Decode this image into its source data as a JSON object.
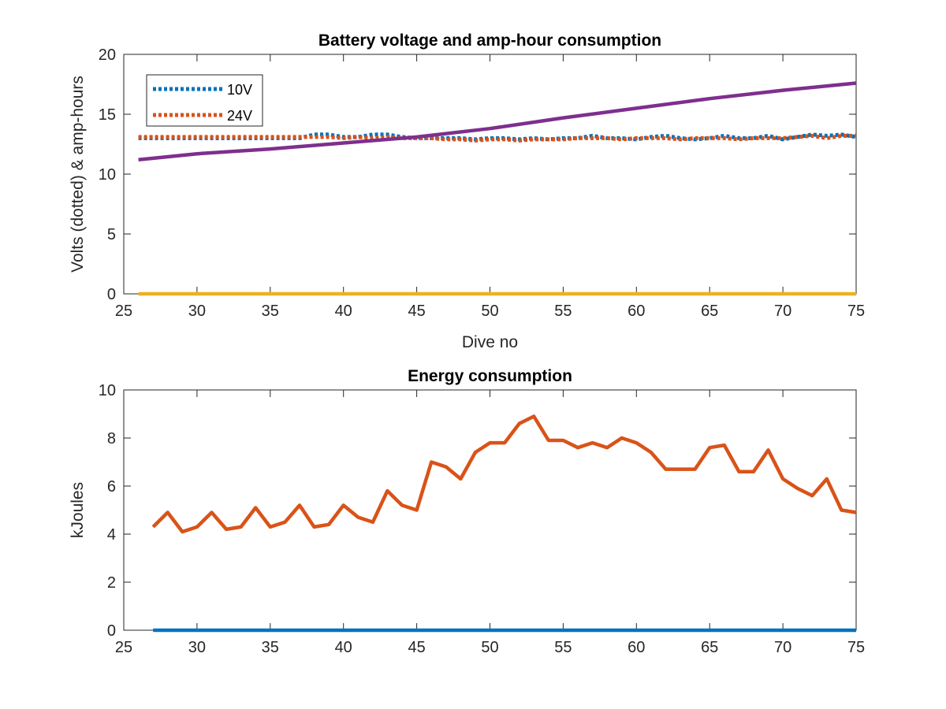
{
  "chart_data": [
    {
      "type": "line",
      "title": "Battery voltage and amp-hour consumption",
      "xlabel": "Dive no",
      "ylabel": "Volts (dotted) & amp-hours",
      "xlim": [
        25,
        75
      ],
      "ylim": [
        0,
        20
      ],
      "xticks": [
        "25",
        "30",
        "35",
        "40",
        "45",
        "50",
        "55",
        "60",
        "65",
        "70",
        "75"
      ],
      "yticks": [
        "0",
        "5",
        "10",
        "15",
        "20"
      ],
      "grid": false,
      "legend": "top-left",
      "series": [
        {
          "name": "10V",
          "style": "dotted",
          "color": "#0072BD",
          "x": [
            26,
            27,
            28,
            29,
            30,
            31,
            32,
            33,
            34,
            35,
            36,
            37,
            38,
            39,
            40,
            41,
            42,
            43,
            44,
            45,
            46,
            47,
            48,
            49,
            50,
            51,
            52,
            53,
            54,
            55,
            56,
            57,
            58,
            59,
            60,
            61,
            62,
            63,
            64,
            65,
            66,
            67,
            68,
            69,
            70,
            71,
            72,
            73,
            74,
            75
          ],
          "y": [
            13.0,
            13.0,
            13.0,
            13.0,
            13.0,
            13.0,
            13.0,
            13.0,
            13.0,
            13.0,
            13.0,
            13.0,
            13.3,
            13.3,
            13.1,
            13.1,
            13.3,
            13.3,
            13.1,
            13.0,
            13.0,
            13.0,
            13.0,
            12.9,
            13.0,
            13.0,
            12.9,
            13.0,
            12.9,
            13.0,
            13.0,
            13.2,
            13.0,
            13.0,
            12.9,
            13.1,
            13.2,
            13.0,
            12.9,
            13.0,
            13.2,
            13.0,
            13.0,
            13.2,
            12.9,
            13.1,
            13.3,
            13.2,
            13.3,
            13.1
          ]
        },
        {
          "name": "24V",
          "style": "dotted",
          "color": "#D95319",
          "x": [
            26,
            27,
            28,
            29,
            30,
            31,
            32,
            33,
            34,
            35,
            36,
            37,
            38,
            39,
            40,
            41,
            42,
            43,
            44,
            45,
            46,
            47,
            48,
            49,
            50,
            51,
            52,
            53,
            54,
            55,
            56,
            57,
            58,
            59,
            60,
            61,
            62,
            63,
            64,
            65,
            66,
            67,
            68,
            69,
            70,
            71,
            72,
            73,
            74,
            75
          ],
          "y": [
            13.1,
            13.1,
            13.1,
            13.1,
            13.1,
            13.1,
            13.1,
            13.1,
            13.1,
            13.1,
            13.1,
            13.1,
            13.1,
            13.1,
            13.0,
            13.1,
            13.0,
            13.1,
            13.0,
            13.0,
            13.0,
            12.9,
            12.9,
            12.8,
            12.9,
            12.9,
            12.8,
            12.9,
            12.9,
            12.9,
            13.0,
            13.0,
            13.0,
            12.9,
            13.0,
            13.0,
            13.0,
            12.9,
            13.0,
            13.0,
            13.0,
            12.9,
            13.0,
            13.0,
            13.0,
            13.1,
            13.2,
            13.0,
            13.2,
            13.2
          ]
        },
        {
          "style": "solid",
          "color": "#7E2F8E",
          "x": [
            26,
            30,
            35,
            40,
            45,
            50,
            55,
            60,
            65,
            70,
            75
          ],
          "y": [
            11.2,
            11.7,
            12.1,
            12.6,
            13.1,
            13.8,
            14.7,
            15.5,
            16.3,
            17.0,
            17.6
          ]
        },
        {
          "style": "solid",
          "color": "#EDB120",
          "x": [
            26,
            75
          ],
          "y": [
            0,
            0
          ]
        }
      ]
    },
    {
      "type": "line",
      "title": "Energy consumption",
      "xlabel": "",
      "ylabel": "kJoules",
      "xlim": [
        25,
        75
      ],
      "ylim": [
        0,
        10
      ],
      "xticks": [
        "25",
        "30",
        "35",
        "40",
        "45",
        "50",
        "55",
        "60",
        "65",
        "70",
        "75"
      ],
      "yticks": [
        "0",
        "2",
        "4",
        "6",
        "8",
        "10"
      ],
      "grid": false,
      "series": [
        {
          "style": "solid",
          "color": "#D95319",
          "x": [
            27,
            28,
            29,
            30,
            31,
            32,
            33,
            34,
            35,
            36,
            37,
            38,
            39,
            40,
            41,
            42,
            43,
            44,
            45,
            46,
            47,
            48,
            49,
            50,
            51,
            52,
            53,
            54,
            55,
            56,
            57,
            58,
            59,
            60,
            61,
            62,
            63,
            64,
            65,
            66,
            67,
            68,
            69,
            70,
            71,
            72,
            73,
            74,
            75
          ],
          "y": [
            4.3,
            4.9,
            4.1,
            4.3,
            4.9,
            4.2,
            4.3,
            5.1,
            4.3,
            4.5,
            5.2,
            4.3,
            4.4,
            5.2,
            4.7,
            4.5,
            5.8,
            5.2,
            5.0,
            7.0,
            6.8,
            6.3,
            7.4,
            7.8,
            7.8,
            8.6,
            8.9,
            7.9,
            7.9,
            7.6,
            7.8,
            7.6,
            8.0,
            7.8,
            7.4,
            6.7,
            6.7,
            6.7,
            7.6,
            7.7,
            6.6,
            6.6,
            7.5,
            6.3,
            5.9,
            5.6,
            6.3,
            5.0,
            4.9
          ]
        },
        {
          "style": "solid",
          "color": "#0072BD",
          "x": [
            27,
            75
          ],
          "y": [
            0,
            0
          ]
        }
      ]
    }
  ]
}
